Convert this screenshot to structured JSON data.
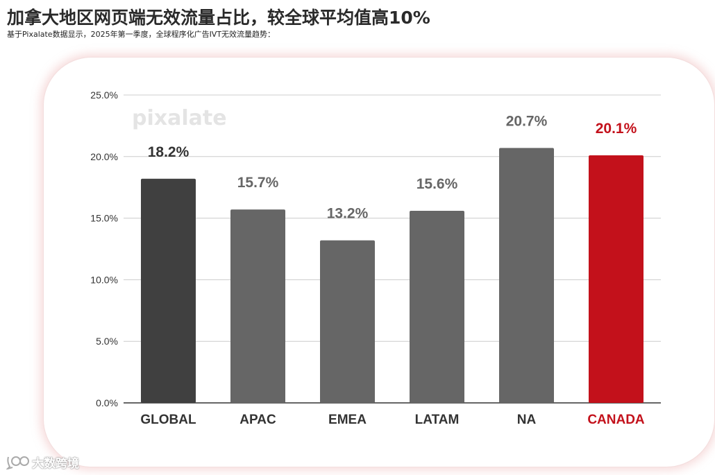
{
  "header": {
    "title": "加拿大地区网页端无效流量占比，较全球平均值高10%",
    "subtitle": "基于Pixalate数据显示，2025年第一季度，全球程序化广告IVT无效流量趋势："
  },
  "watermark": {
    "text": "大数跨境",
    "icon": "eye-bubble-icon"
  },
  "chart_data": {
    "type": "bar",
    "categories": [
      "GLOBAL",
      "APAC",
      "EMEA",
      "LATAM",
      "NA",
      "CANADA"
    ],
    "values": [
      18.2,
      15.7,
      13.2,
      15.6,
      20.7,
      20.1
    ],
    "value_labels": [
      "18.2%",
      "15.7%",
      "13.2%",
      "15.6%",
      "20.7%",
      "20.1%"
    ],
    "bar_colors": [
      "#404040",
      "#666666",
      "#666666",
      "#666666",
      "#666666",
      "#c3111b"
    ],
    "label_colors": [
      "#333333",
      "#666666",
      "#666666",
      "#666666",
      "#666666",
      "#c3111b"
    ],
    "category_label_colors": [
      "#333333",
      "#333333",
      "#333333",
      "#333333",
      "#333333",
      "#c3111b"
    ],
    "ylim": [
      0,
      25
    ],
    "yticks": [
      0,
      5,
      10,
      15,
      20,
      25
    ],
    "ytick_labels": [
      "0.0%",
      "5.0%",
      "10.0%",
      "15.0%",
      "20.0%",
      "25.0%"
    ],
    "grid": true,
    "logo": "pixalate",
    "title": "",
    "xlabel": "",
    "ylabel": ""
  }
}
